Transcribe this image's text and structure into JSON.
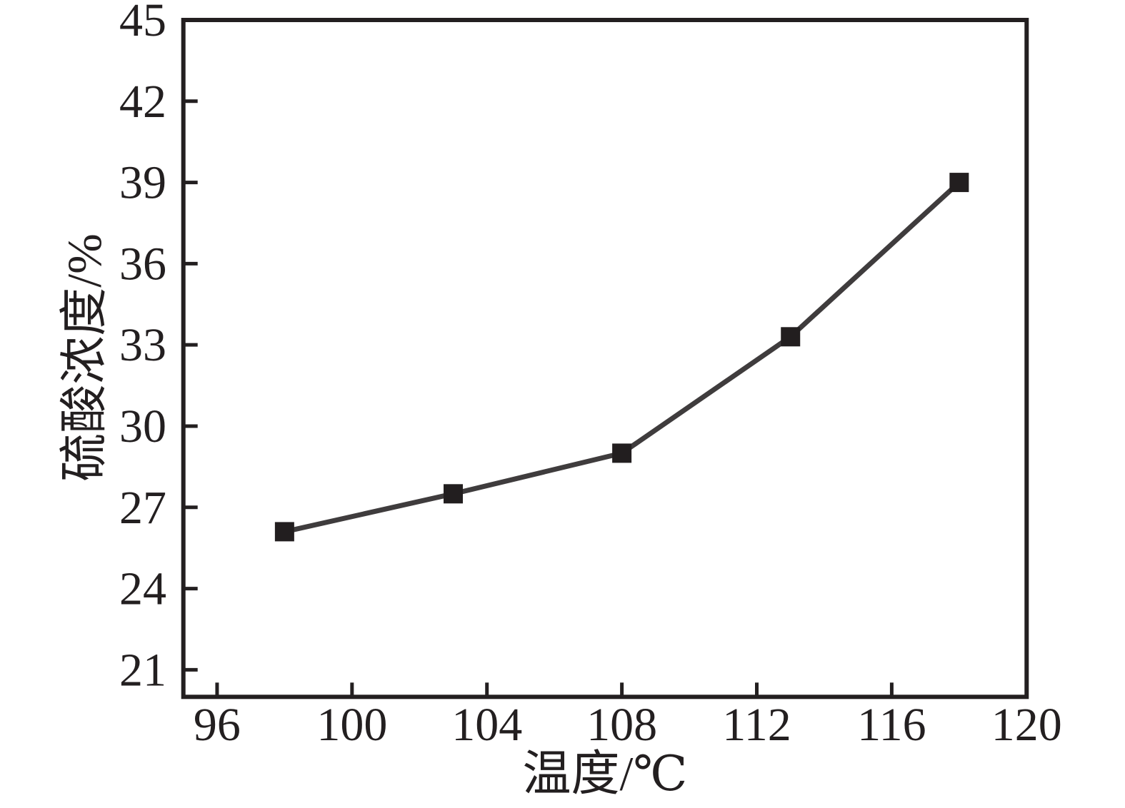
{
  "chart_data": {
    "type": "line",
    "title": "",
    "xlabel": "温度/℃",
    "ylabel": "硫酸浓度/%",
    "x": [
      98,
      103,
      108,
      113,
      118
    ],
    "y": [
      26.1,
      27.5,
      29.0,
      33.3,
      39.0
    ],
    "xlim": [
      95,
      120
    ],
    "ylim": [
      20,
      45
    ],
    "x_ticks": [
      96,
      100,
      104,
      108,
      112,
      116,
      120
    ],
    "y_ticks": [
      21,
      24,
      27,
      30,
      33,
      36,
      39,
      42,
      45
    ],
    "grid": false,
    "legend": "none",
    "marker": "square",
    "series_name": "硫酸浓度",
    "colors": {
      "line": "#3f3c3d",
      "marker": "#221e1f",
      "axis": "#231f20",
      "text": "#231f20",
      "background": "#ffffff"
    }
  }
}
